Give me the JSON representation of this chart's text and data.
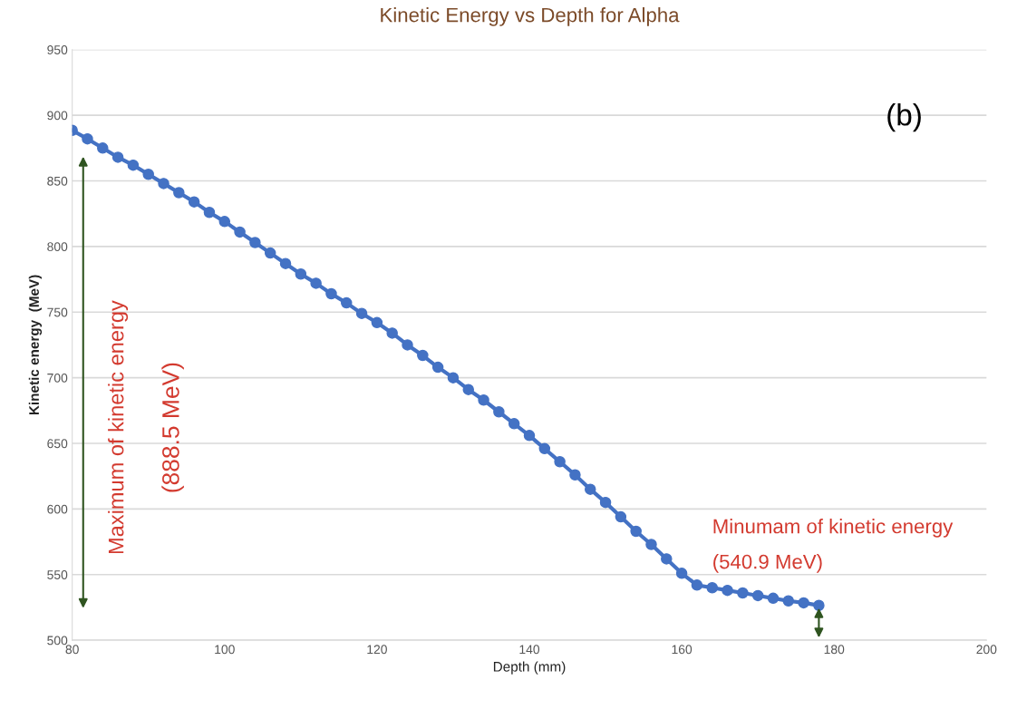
{
  "chart_data": {
    "type": "line",
    "title": "Kinetic Energy vs Depth for Alpha",
    "xlabel": "Depth (mm)",
    "ylabel": "Kinetic energy  (MeV)",
    "x": [
      80,
      82,
      84,
      86,
      88,
      90,
      92,
      94,
      96,
      98,
      100,
      102,
      104,
      106,
      108,
      110,
      112,
      114,
      116,
      118,
      120,
      122,
      124,
      126,
      128,
      130,
      132,
      134,
      136,
      138,
      140,
      142,
      144,
      146,
      148,
      150,
      152,
      154,
      156,
      158,
      160,
      162,
      164,
      166,
      168,
      170,
      172,
      174,
      176,
      178
    ],
    "series": [
      {
        "color": "#4472c4",
        "values": [
          888.5,
          882,
          875,
          868,
          862,
          855,
          848,
          841,
          834,
          826,
          819,
          811,
          803,
          795,
          787,
          779,
          772,
          764,
          757,
          749,
          742,
          734,
          725,
          717,
          708,
          700,
          691,
          683,
          674,
          665,
          656,
          646,
          636,
          626,
          615,
          605,
          594,
          583,
          573,
          562,
          551,
          542,
          540,
          538,
          536,
          534,
          532,
          530,
          528.5,
          526.5
        ]
      }
    ],
    "xlim": [
      80,
      200
    ],
    "xticks": [
      80,
      100,
      120,
      140,
      160,
      180,
      200
    ],
    "ylim": [
      500,
      950
    ],
    "yticks": [
      500,
      550,
      600,
      650,
      700,
      750,
      800,
      850,
      900,
      950
    ],
    "grid": "y",
    "marker": "circle",
    "line_style": "solid",
    "legend": false,
    "annotations": [
      "(b)",
      "Maximum of kinetic energy",
      "(888.5 MeV)",
      "Minumam of kinetic energy",
      "(540.9 MeV)"
    ]
  }
}
